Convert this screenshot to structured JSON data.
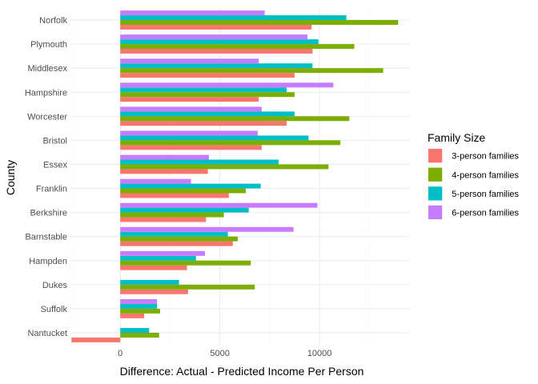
{
  "chart_data": {
    "type": "bar",
    "orientation": "horizontal",
    "xlabel": "Difference: Actual - Predicted Income Per Person",
    "ylabel": "County",
    "xlim": [
      -2500,
      14500
    ],
    "xticks": [
      0,
      5000,
      10000
    ],
    "grid": true,
    "legend": {
      "title": "Family Size",
      "position": "right"
    },
    "categories": [
      "Norfolk",
      "Plymouth",
      "Middlesex",
      "Hampshire",
      "Worcester",
      "Bristol",
      "Essex",
      "Franklin",
      "Berkshire",
      "Barnstable",
      "Hampden",
      "Dukes",
      "Suffolk",
      "Nantucket"
    ],
    "series": [
      {
        "name": "3-person families",
        "color": "#F8766D",
        "values": [
          9600,
          9650,
          8750,
          6950,
          8350,
          7100,
          4400,
          5450,
          4300,
          5650,
          3350,
          3400,
          1200,
          -2450
        ]
      },
      {
        "name": "4-person families",
        "color": "#7CAE00",
        "values": [
          13950,
          11750,
          13200,
          8750,
          11500,
          11050,
          10450,
          6300,
          5200,
          5900,
          6550,
          6750,
          2000,
          1950
        ]
      },
      {
        "name": "5-person families",
        "color": "#00BFC4",
        "values": [
          11350,
          9950,
          9650,
          8350,
          8750,
          9450,
          7950,
          7050,
          6450,
          5400,
          3800,
          2950,
          1850,
          1450
        ]
      },
      {
        "name": "6-person families",
        "color": "#C77CFF",
        "values": [
          7250,
          9400,
          6950,
          10700,
          7100,
          6900,
          4450,
          3550,
          9900,
          8700,
          4250,
          null,
          1850,
          null
        ]
      }
    ]
  }
}
